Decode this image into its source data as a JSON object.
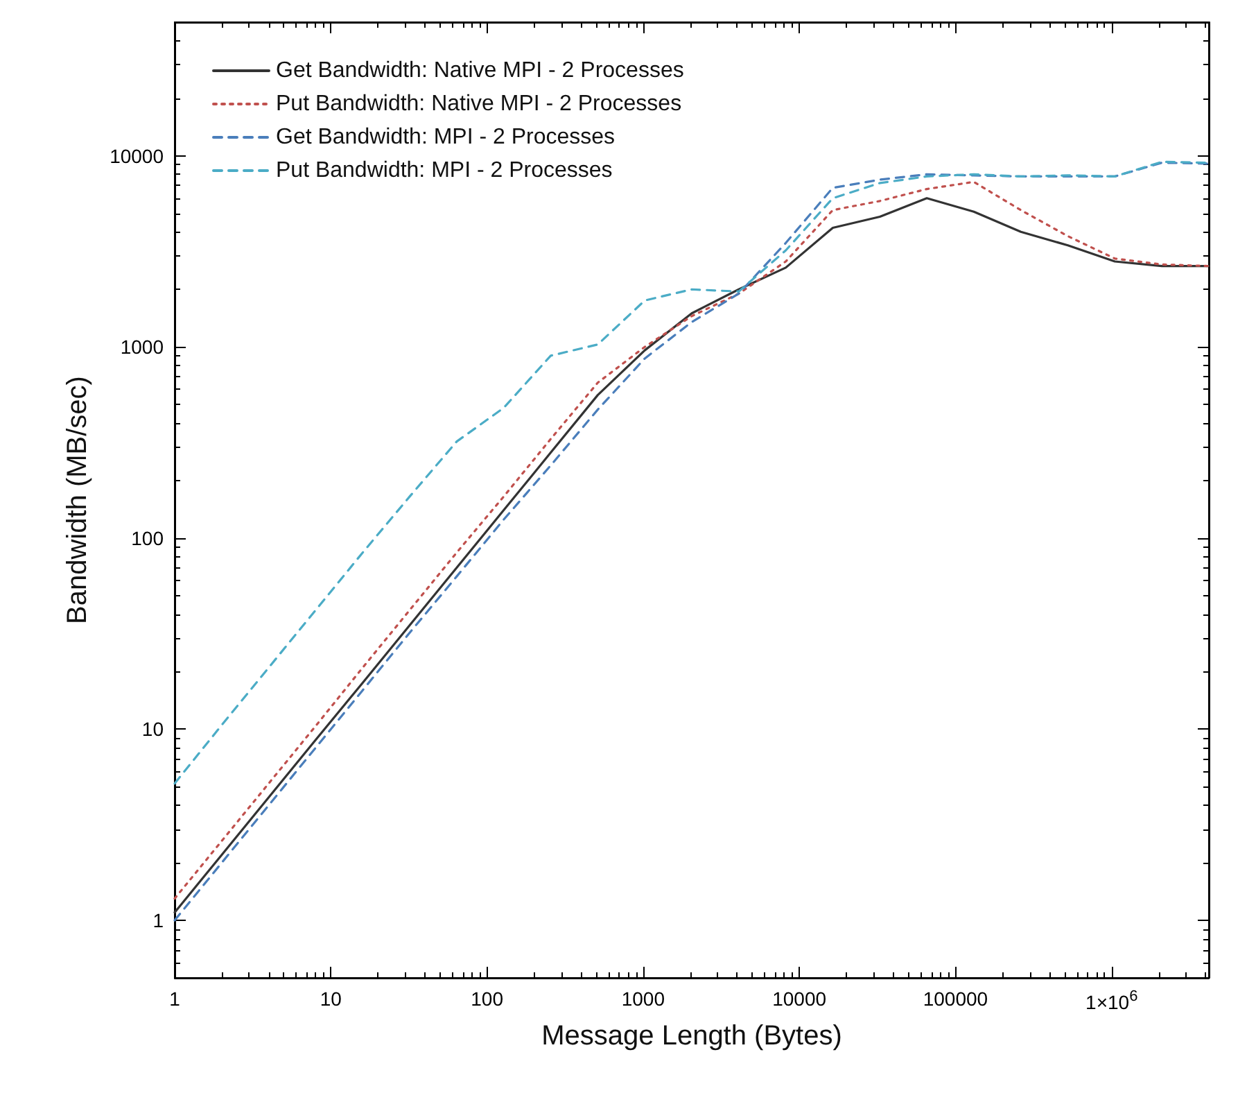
{
  "chart_data": {
    "type": "line",
    "xlabel": "Message Length (Bytes)",
    "ylabel": "Bandwidth (MB/sec)",
    "log": "xy",
    "grid": false,
    "legend": "top left",
    "marker": "none",
    "x": [
      1,
      2,
      4,
      8,
      16,
      32,
      64,
      128,
      256,
      512,
      1024,
      2048,
      4096,
      8192,
      16384,
      32768,
      65536,
      131072,
      262144,
      524288,
      1048576,
      2097152,
      4194304
    ],
    "xlim": [
      1,
      4194304
    ],
    "ylim": [
      0.5,
      50000
    ],
    "xticks": [
      1,
      10,
      100,
      1000,
      10000,
      100000,
      {
        "value": 1000000,
        "label": "1×10$^{6}$"
      }
    ],
    "yticks": [
      1,
      10,
      100,
      1000,
      10000
    ],
    "series": [
      {
        "name": "Get Bandwidth: Native MPI - 2 Processes",
        "color": "#333333",
        "line_style": "solid",
        "values": [
          1.1,
          2.2,
          4.4,
          8.8,
          17.5,
          35,
          70,
          140,
          280,
          560,
          960,
          1500,
          2000,
          2600,
          4200,
          4800,
          6000,
          5100,
          4000,
          3400,
          2800,
          2650,
          2650
        ]
      },
      {
        "name": "Put Bandwidth: Native MPI - 2 Processes",
        "color": "#c0504d",
        "line_style": "dotted",
        "values": [
          1.3,
          2.6,
          5.2,
          10.4,
          21,
          42,
          84,
          165,
          330,
          650,
          1000,
          1450,
          1900,
          2800,
          5200,
          5800,
          6700,
          7300,
          5200,
          3800,
          2900,
          2700,
          2650
        ]
      },
      {
        "name": "Get Bandwidth: MPI - 2 Processes",
        "color": "#4a7ebb",
        "line_style": "dashed",
        "values": [
          1.0,
          2,
          4,
          8,
          16,
          32,
          63,
          125,
          240,
          470,
          870,
          1350,
          1900,
          3500,
          6800,
          7500,
          8000,
          7900,
          7800,
          7800,
          7800,
          9200,
          9100
        ]
      },
      {
        "name": "Put Bandwidth: MPI - 2 Processes",
        "color": "#4bacc6",
        "line_style": "dashed",
        "values": [
          5.2,
          10.5,
          21,
          42,
          84,
          165,
          320,
          480,
          900,
          1030,
          1750,
          2000,
          1950,
          3200,
          6000,
          7200,
          7800,
          8000,
          7800,
          7900,
          7800,
          9300,
          9200
        ]
      }
    ]
  }
}
